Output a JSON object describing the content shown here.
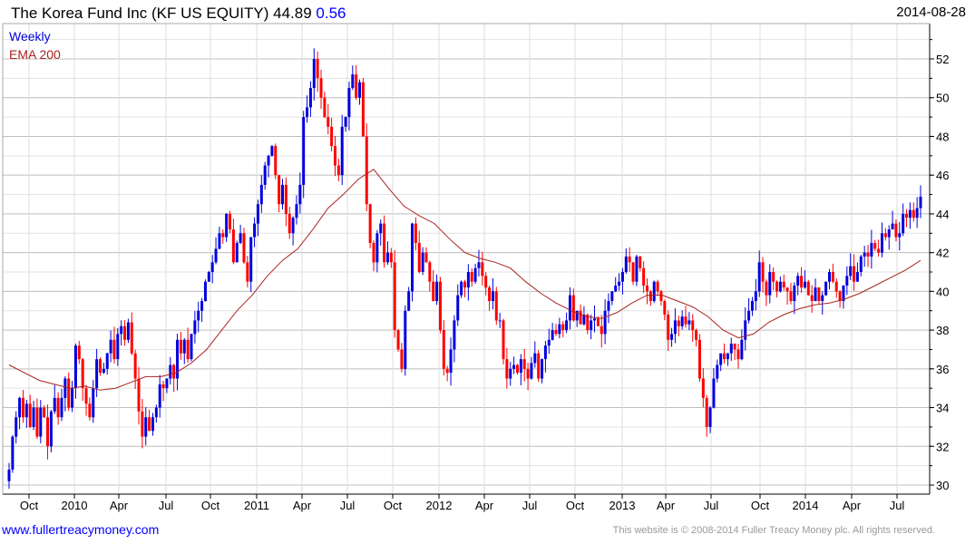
{
  "header": {
    "title": "The Korea Fund Inc (KF US EQUITY)",
    "last": "44.89",
    "change": "0.56",
    "date": "2014-08-28"
  },
  "footer": {
    "link": "www.fullertreacymoney.com",
    "copyright": "This website is © 2008-2014 Fuller Treacy Money plc. All rights reserved."
  },
  "colors": {
    "up": "#0000dd",
    "down": "#ff0000",
    "ema": "#aa2222"
  },
  "chart_data": {
    "type": "candlestick",
    "title": "The Korea Fund Inc (KF US EQUITY) 44.89 0.56",
    "legend": [
      "Weekly",
      "EMA 200"
    ],
    "legend_placement": "top-left",
    "ylim": [
      29.5,
      53.5
    ],
    "yticks": [
      30,
      32,
      34,
      36,
      38,
      40,
      42,
      44,
      46,
      48,
      50,
      52
    ],
    "xticks": [
      "Oct",
      "2010",
      "Apr",
      "Jul",
      "Oct",
      "2011",
      "Apr",
      "Jul",
      "Oct",
      "2012",
      "Apr",
      "Jul",
      "Oct",
      "2013",
      "Apr",
      "Jul",
      "Oct",
      "2014",
      "Apr",
      "Jul"
    ],
    "weekly_close_start": 30.2,
    "weekly_close": [
      30.8,
      32.5,
      33.5,
      34.5,
      33.5,
      34.2,
      33,
      34,
      32.5,
      34,
      33.5,
      32,
      33.8,
      34.5,
      33.5,
      34.5,
      35.5,
      34,
      35,
      37.2,
      36.5,
      35,
      34.2,
      33.5,
      35,
      36.5,
      35.8,
      36,
      36.8,
      37.5,
      36.5,
      37.8,
      38.2,
      37.5,
      38.4,
      36.8,
      35.5,
      33.8,
      32.5,
      33.5,
      32.8,
      33.5,
      34,
      35.2,
      35,
      35.5,
      36.2,
      35.5,
      37.5,
      36.8,
      37.5,
      36.5,
      37.8,
      38.5,
      39,
      39.5,
      40.5,
      41,
      41.5,
      42.2,
      43,
      42.8,
      44,
      43.2,
      41.5,
      42.5,
      43,
      41.5,
      40.5,
      42.8,
      43.5,
      44.5,
      45.5,
      46.5,
      47,
      47.5,
      46,
      44.5,
      45.5,
      44,
      43,
      43.8,
      44.5,
      45.5,
      49,
      49.5,
      50.5,
      52,
      51,
      50,
      49,
      48.5,
      47.5,
      46.5,
      46,
      48.5,
      49,
      50.5,
      51.2,
      50,
      50.8,
      48,
      44.5,
      42.5,
      41.5,
      43,
      43.5,
      41.5,
      42,
      41.5,
      38,
      37,
      36,
      39,
      40,
      43.5,
      42.5,
      41,
      42,
      41.5,
      40.5,
      39.5,
      40.5,
      38,
      36,
      35.8,
      37,
      38.5,
      39.8,
      40.5,
      40.2,
      41,
      40.5,
      41.2,
      41.5,
      40.8,
      40.2,
      39.5,
      40,
      38.5,
      38.5,
      36.5,
      35.5,
      36,
      36.2,
      35.8,
      36.5,
      36,
      35.5,
      36.3,
      36.8,
      35.5,
      36.5,
      37.2,
      37.5,
      38,
      37.8,
      38.3,
      38,
      38.5,
      39.8,
      38.5,
      39,
      38.3,
      38.8,
      38,
      38.5,
      38.6,
      38.2,
      37.8,
      39,
      39.5,
      40,
      40.3,
      40.5,
      41,
      41.8,
      41.5,
      40.5,
      41.8,
      41.2,
      40.3,
      40,
      39.5,
      40.5,
      40,
      39.5,
      38.8,
      37.5,
      37.8,
      38.5,
      38.2,
      38.7,
      38.3,
      38.5,
      38,
      37.5,
      35.5,
      34.5,
      33,
      34,
      35.5,
      36.2,
      36.8,
      36.5,
      36.8,
      37.3,
      37,
      36.5,
      37.5,
      38.5,
      39,
      39.5,
      40,
      41.5,
      40.5,
      39.8,
      41,
      40.5,
      40,
      40.5,
      40.2,
      40,
      39.5,
      40.3,
      40.8,
      40.2,
      40.5,
      39.8,
      39.5,
      40.2,
      39.5,
      39.8,
      40.5,
      41,
      40.5,
      40,
      39.5,
      40.3,
      40.8,
      41.3,
      40.5,
      41,
      41.8,
      42,
      41.8,
      42.5,
      42.2,
      42,
      43,
      42.8,
      43.2,
      43.5,
      42.8,
      43,
      44,
      43.8,
      44.2,
      43.8,
      44.3,
      44.89
    ],
    "ema200_monthly": [
      36.2,
      35.8,
      35.4,
      35.2,
      35.0,
      35.1,
      34.9,
      35.0,
      35.3,
      35.6,
      35.6,
      35.8,
      36.3,
      37.0,
      38.0,
      39.0,
      39.8,
      40.8,
      41.6,
      42.2,
      43.2,
      44.3,
      45.0,
      45.8,
      46.3,
      45.3,
      44.4,
      43.9,
      43.5,
      42.7,
      42.0,
      41.7,
      41.5,
      41.2,
      40.5,
      39.9,
      39.4,
      39.0,
      38.7,
      38.6,
      38.9,
      39.4,
      39.8,
      39.8,
      39.5,
      39.2,
      38.7,
      38.0,
      37.6,
      37.8,
      38.4,
      38.8,
      39.1,
      39.3,
      39.4,
      39.6,
      39.9,
      40.3,
      40.7,
      41.1,
      41.6
    ]
  }
}
